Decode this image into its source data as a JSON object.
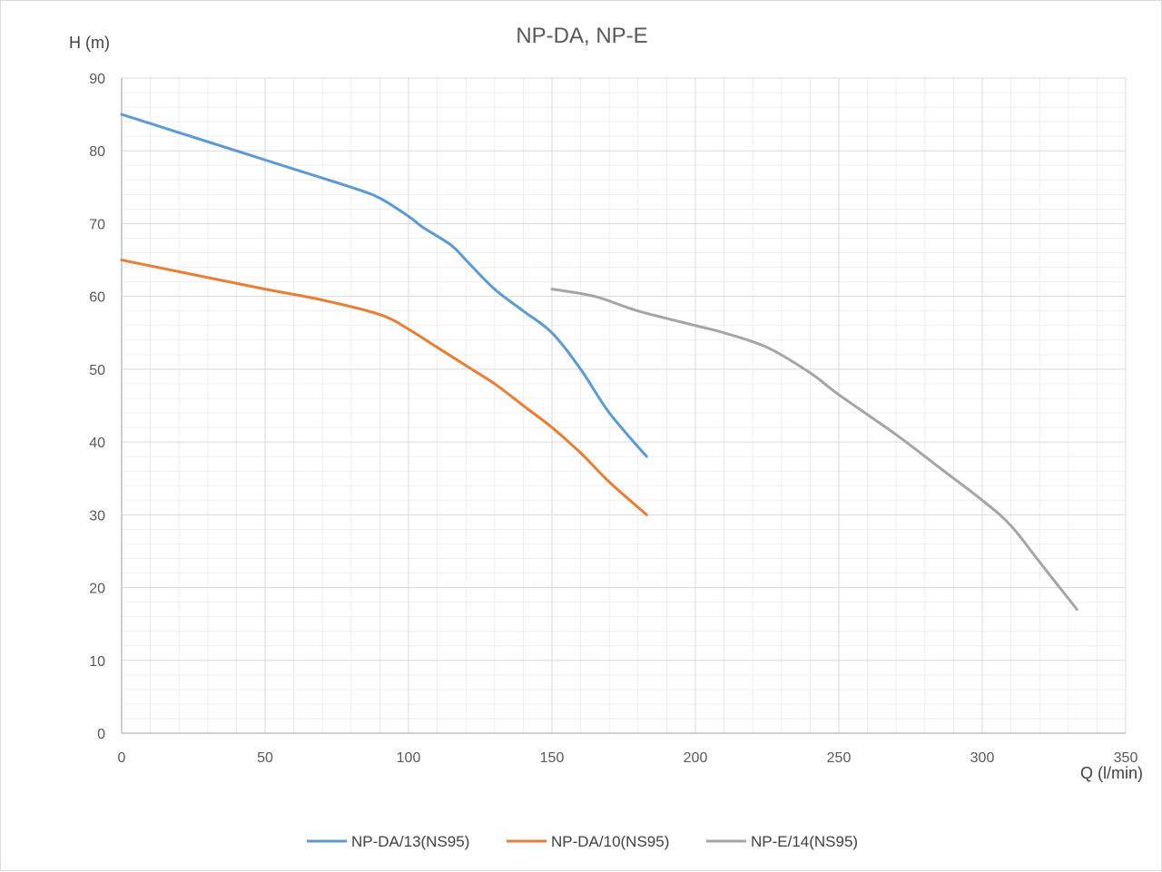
{
  "chart_data": {
    "type": "line",
    "title": "NP-DA, NP-E",
    "xlabel": "Q (l/min)",
    "ylabel": "H (m)",
    "xlim": [
      0,
      350
    ],
    "ylim": [
      0,
      90
    ],
    "x_ticks": [
      "0",
      "50",
      "100",
      "150",
      "200",
      "250",
      "300",
      "350"
    ],
    "y_ticks": [
      "0",
      "10",
      "20",
      "30",
      "40",
      "50",
      "60",
      "70",
      "80",
      "90"
    ],
    "grid": true,
    "minor_grid": true,
    "legend_position": "bottom",
    "series": [
      {
        "name": "NP-DA/13(NS95)",
        "color": "#5b9bd5",
        "points": [
          [
            0,
            85
          ],
          [
            20,
            82.5
          ],
          [
            40,
            80
          ],
          [
            60,
            77.5
          ],
          [
            80,
            75
          ],
          [
            90,
            73.5
          ],
          [
            100,
            71
          ],
          [
            105,
            69.5
          ],
          [
            115,
            67
          ],
          [
            120,
            65
          ],
          [
            130,
            61
          ],
          [
            140,
            58
          ],
          [
            150,
            55
          ],
          [
            160,
            50
          ],
          [
            170,
            44
          ],
          [
            183,
            38
          ]
        ]
      },
      {
        "name": "NP-DA/10(NS95)",
        "color": "#ed7d31",
        "points": [
          [
            0,
            65
          ],
          [
            25,
            63
          ],
          [
            50,
            61
          ],
          [
            70,
            59.5
          ],
          [
            90,
            57.5
          ],
          [
            100,
            55.5
          ],
          [
            110,
            53
          ],
          [
            120,
            50.5
          ],
          [
            130,
            48
          ],
          [
            140,
            45
          ],
          [
            150,
            42
          ],
          [
            160,
            38.5
          ],
          [
            170,
            34.5
          ],
          [
            183,
            30
          ]
        ]
      },
      {
        "name": "NP-E/14(NS95)",
        "color": "#a5a5a5",
        "points": [
          [
            150,
            61
          ],
          [
            165,
            60
          ],
          [
            180,
            58
          ],
          [
            200,
            56
          ],
          [
            210,
            55
          ],
          [
            225,
            53
          ],
          [
            240,
            49.5
          ],
          [
            250,
            46.5
          ],
          [
            270,
            41
          ],
          [
            285,
            36.5
          ],
          [
            300,
            32
          ],
          [
            310,
            28.5
          ],
          [
            320,
            23.5
          ],
          [
            333,
            17
          ]
        ]
      }
    ]
  }
}
